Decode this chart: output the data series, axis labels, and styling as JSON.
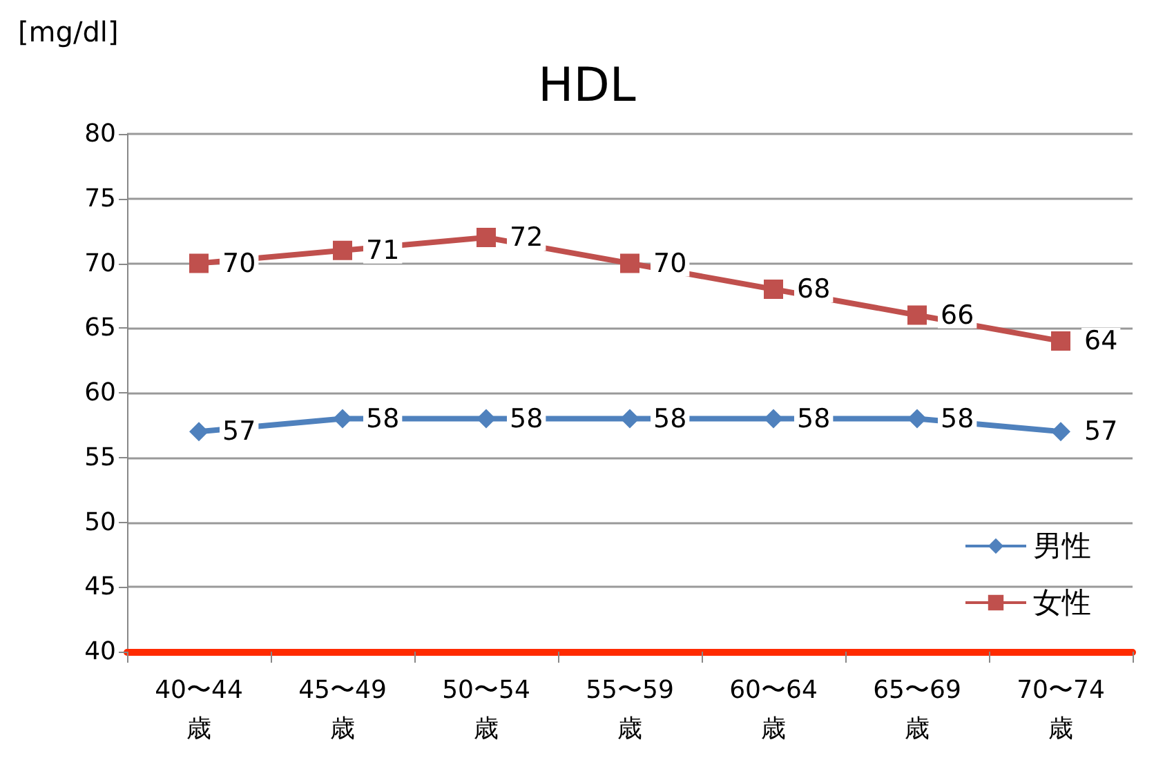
{
  "chart_data": {
    "type": "line",
    "title": "HDL",
    "ylabel": "[mg/dl]",
    "categories": [
      "40〜44歳",
      "45〜49歳",
      "50〜54歳",
      "55〜59歳",
      "60〜64歳",
      "65〜69歳",
      "70〜74歳"
    ],
    "series": [
      {
        "name": "男性",
        "color": "#4f81bd",
        "marker": "diamond",
        "values": [
          57,
          58,
          58,
          58,
          58,
          58,
          57
        ]
      },
      {
        "name": "女性",
        "color": "#c0504d",
        "marker": "square",
        "values": [
          70,
          71,
          72,
          70,
          68,
          66,
          64
        ]
      }
    ],
    "ylim": [
      40,
      80
    ],
    "yticks": [
      40,
      45,
      50,
      55,
      60,
      65,
      70,
      75,
      80
    ],
    "grid": "y",
    "legend": "bottom right",
    "data_labels": true
  }
}
